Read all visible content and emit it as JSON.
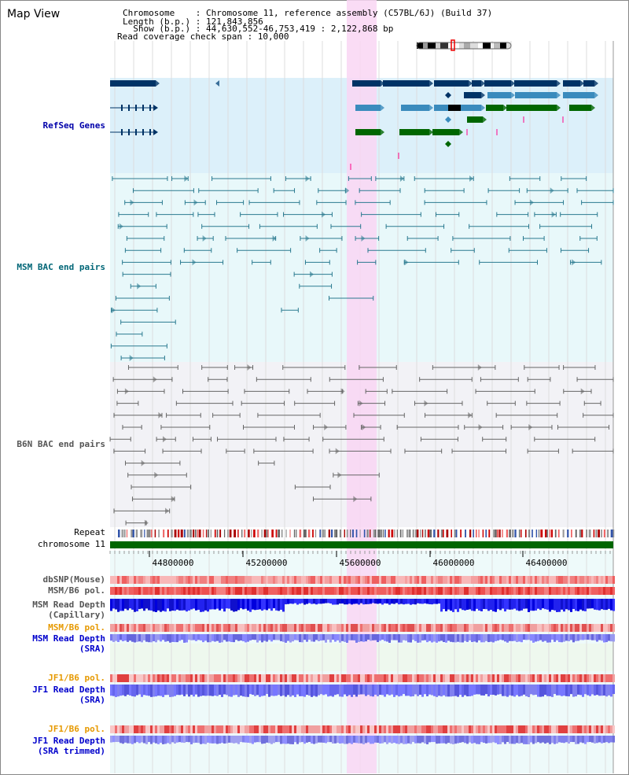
{
  "title": "Map View",
  "info": {
    "line1": "Chromosome    : Chromosome 11, reference assembly (C57BL/6J) (Build 37)",
    "line2": "Length (b.p.) : 121,843,856",
    "line3": "  Show (b.p.) : 44,630,552-46,753,419 : 2,122,868 bp",
    "line4": "Read coverage check span : 10,000"
  },
  "tracks": {
    "refseq": "RefSeq Genes",
    "msm_bac": "MSM BAC end pairs",
    "b6n_bac": "B6N BAC end pairs",
    "repeat": "Repeat",
    "chromosome": "chromosome 11",
    "dbsnp": "dbSNP(Mouse)",
    "msm_b6_pol_1": "MSM/B6 pol.",
    "msm_depth_cap_1": "MSM Read Depth",
    "msm_depth_cap_2": "(Capillary)",
    "msm_b6_pol_2": "MSM/B6 pol.",
    "msm_depth_sra_1": "MSM Read Depth",
    "msm_depth_sra_2": "(SRA)",
    "jf1_pol_1": "JF1/B6 pol.",
    "jf1_depth_1": "JF1 Read Depth",
    "jf1_depth_2": "(SRA)",
    "jf1_pol_2": "JF1/B6 pol.",
    "jf1_trim_1": "JF1 Read Depth",
    "jf1_trim_2": "(SRA trimmed)"
  },
  "axis": {
    "ticks": [
      "44800000",
      "45200000",
      "45600000",
      "46000000",
      "46400000"
    ]
  },
  "colors": {
    "refseq_label": "#0000aa",
    "msm_label": "#006677",
    "b6n_label": "#555555",
    "pol_orange": "#e69900",
    "depth_blue": "#0000cc",
    "highlight": "#f9d6f3"
  }
}
